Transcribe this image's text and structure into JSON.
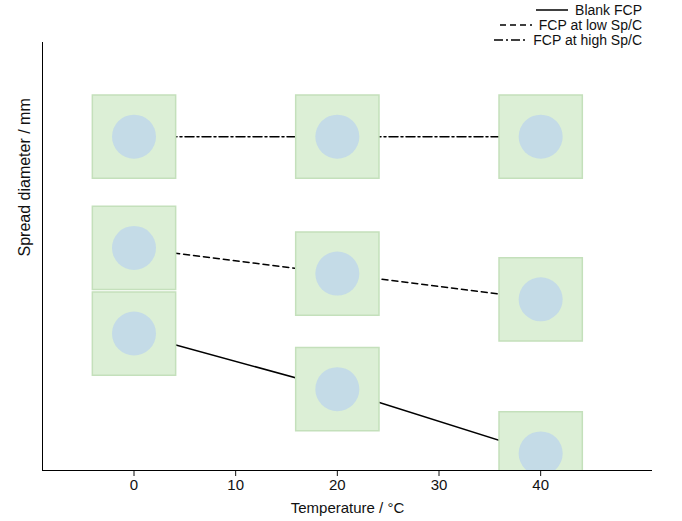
{
  "chart_data": {
    "type": "line",
    "x_label": "Temperature / °C",
    "y_label": "Spread diameter / mm",
    "x": [
      0,
      20,
      40
    ],
    "xlim": [
      -9,
      51
    ],
    "xticks": [
      0,
      10,
      20,
      30,
      40
    ],
    "ylim": [
      0,
      100
    ],
    "tick_labels": "x",
    "legend": "top",
    "series": [
      {
        "name": "Blank FCP",
        "color": "#000000",
        "line_style": "solid",
        "values": [
          32,
          19,
          4
        ]
      },
      {
        "name": "FCP at low Sp/C",
        "color": "#000000",
        "line_style": "dashed",
        "values": [
          52,
          46,
          40
        ]
      },
      {
        "name": "FCP at high Sp/C",
        "color": "#000000",
        "line_style": "dashdot",
        "values": [
          78,
          78,
          78
        ]
      }
    ]
  }
}
